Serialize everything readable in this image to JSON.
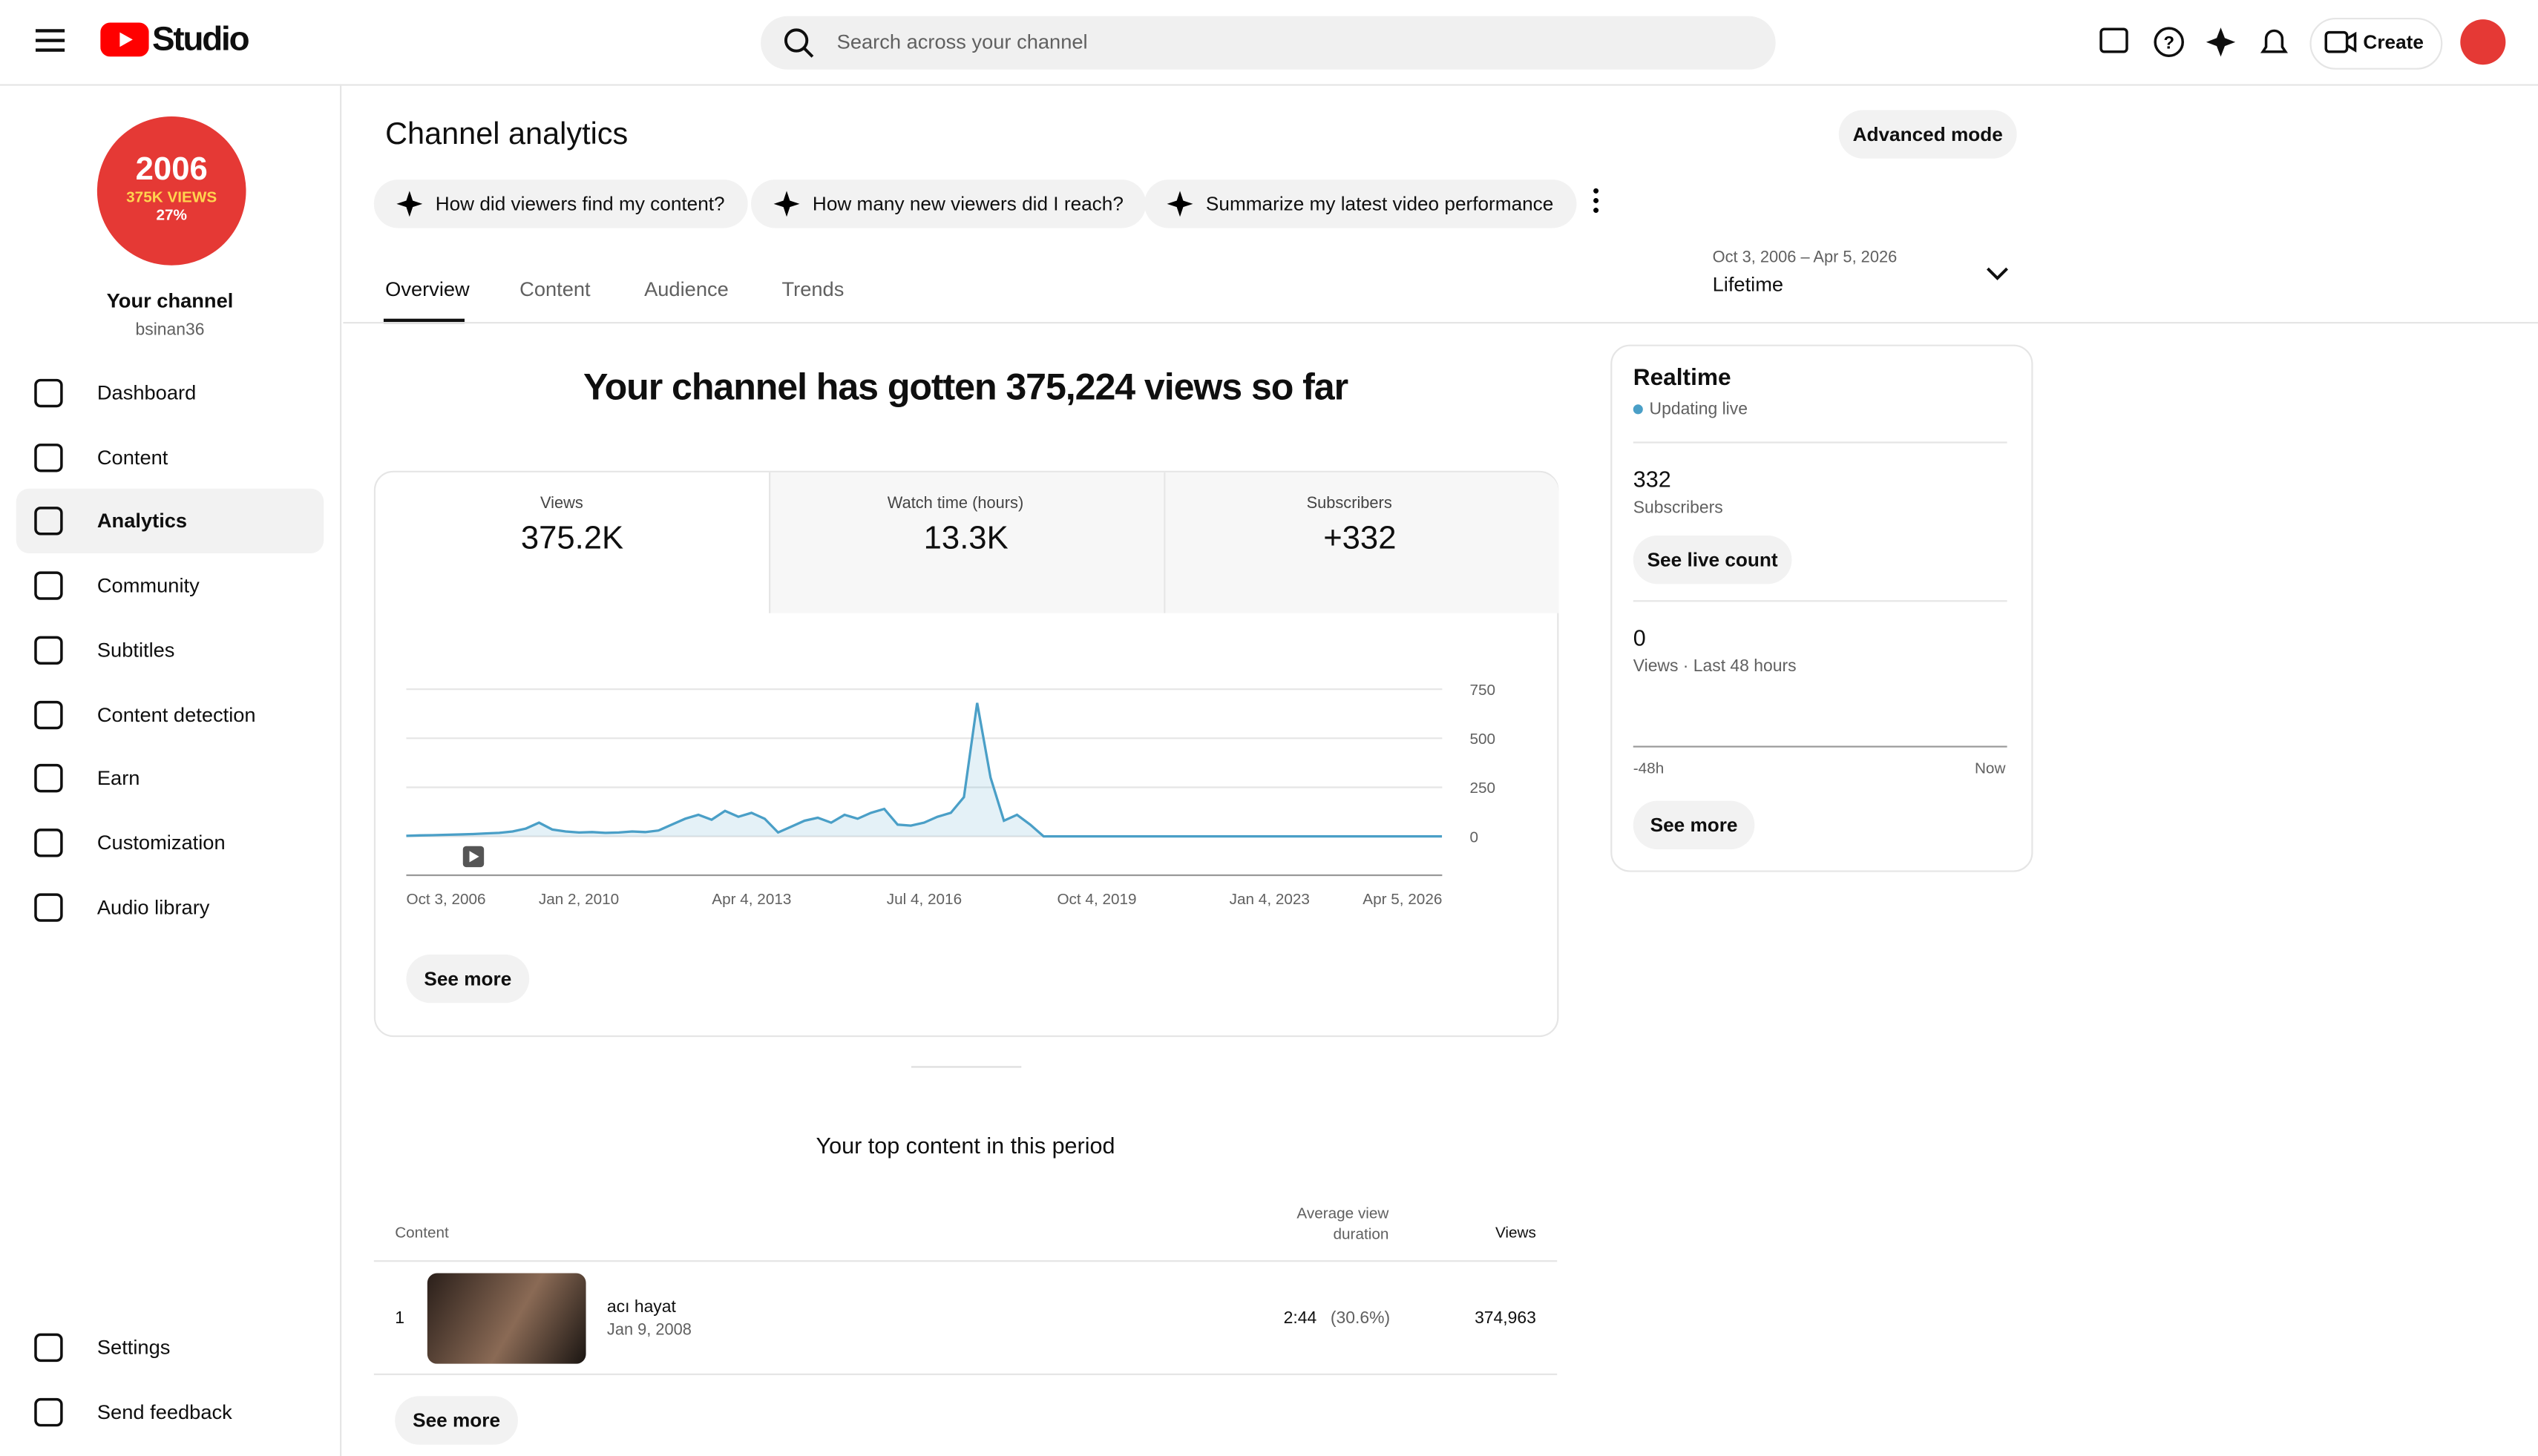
{
  "header": {
    "logo": "Studio",
    "search_placeholder": "Search across your channel",
    "create": "Create"
  },
  "sidebar": {
    "channel_name": "Your channel",
    "handle": "bsinan36",
    "avatar": {
      "year": "2006",
      "views": "375K VIEWS",
      "percent": "27%"
    },
    "nav": [
      "Dashboard",
      "Content",
      "Analytics",
      "Community",
      "Subtitles",
      "Content detection",
      "Earn",
      "Customization",
      "Audio library"
    ],
    "footer": [
      "Settings",
      "Send feedback"
    ]
  },
  "page": {
    "title": "Channel analytics",
    "advanced_mode": "Advanced mode",
    "chips": [
      "How did viewers find my content?",
      "How many new viewers did I reach?",
      "Summarize my latest video performance"
    ],
    "tabs": [
      "Overview",
      "Content",
      "Audience",
      "Trends"
    ],
    "date_range": {
      "range": "Oct 3, 2006 – Apr 5, 2026",
      "label": "Lifetime"
    },
    "headline": "Your channel has gotten 375,224 views so far",
    "metrics": [
      {
        "name": "Views",
        "value": "375.2K"
      },
      {
        "name": "Watch time (hours)",
        "value": "13.3K"
      },
      {
        "name": "Subscribers",
        "value": "+332"
      }
    ],
    "see_more": "See more"
  },
  "chart_data": {
    "type": "line",
    "color": "#4a9fc7",
    "grid": true,
    "x": [
      "2006-10-03",
      "2007-01-03",
      "2007-04-03",
      "2007-07-03",
      "2007-10-03",
      "2008-01-03",
      "2008-04-03",
      "2008-07-03",
      "2008-10-03",
      "2009-01-03",
      "2009-04-03",
      "2009-07-03",
      "2009-10-03",
      "2010-01-03",
      "2010-04-03",
      "2010-07-03",
      "2010-10-03",
      "2011-01-03",
      "2011-04-03",
      "2011-07-03",
      "2011-10-03",
      "2012-01-03",
      "2012-04-03",
      "2012-07-03",
      "2012-10-03",
      "2013-01-03",
      "2013-04-03",
      "2013-07-03",
      "2013-10-03",
      "2014-01-03",
      "2014-04-03",
      "2014-07-03",
      "2014-10-03",
      "2015-01-03",
      "2015-04-03",
      "2015-07-03",
      "2015-10-03",
      "2016-01-03",
      "2016-04-03",
      "2016-07-03",
      "2016-10-03",
      "2017-01-03",
      "2017-04-03",
      "2017-07-03",
      "2017-10-03",
      "2018-01-03",
      "2018-04-03",
      "2018-07-03",
      "2018-10-03",
      "2019-01-03",
      "2019-04-03",
      "2019-07-03",
      "2019-10-03",
      "2020-01-03",
      "2020-04-03",
      "2020-07-03",
      "2020-10-03",
      "2021-01-03",
      "2021-04-03",
      "2021-07-03",
      "2021-10-03",
      "2022-01-03",
      "2022-04-03",
      "2022-07-03",
      "2022-10-03",
      "2023-01-03",
      "2023-04-03",
      "2023-07-03",
      "2023-10-03",
      "2024-01-03",
      "2024-04-03",
      "2024-07-03",
      "2024-10-03",
      "2025-01-03",
      "2025-04-03",
      "2025-07-03",
      "2025-10-03",
      "2026-01-03",
      "2026-04-03"
    ],
    "values": [
      3,
      5,
      6,
      8,
      10,
      12,
      15,
      18,
      25,
      40,
      70,
      35,
      25,
      20,
      22,
      18,
      20,
      25,
      22,
      30,
      60,
      90,
      110,
      85,
      130,
      100,
      120,
      90,
      20,
      50,
      80,
      95,
      70,
      110,
      90,
      120,
      140,
      60,
      55,
      70,
      100,
      120,
      200,
      680,
      300,
      80,
      110,
      60,
      0,
      0,
      0,
      0,
      0,
      0,
      0,
      0,
      0,
      0,
      0,
      0,
      0,
      0,
      0,
      0,
      0,
      0,
      0,
      0,
      0,
      0,
      0,
      0,
      0,
      0,
      0,
      0,
      0,
      0,
      0
    ],
    "xlim": [
      "2006-10-03",
      "2026-04-05"
    ],
    "xticks": [
      {
        "value": "2006-10-03",
        "label": "Oct 3, 2006"
      },
      {
        "value": "2010-01-02",
        "label": "Jan 2, 2010"
      },
      {
        "value": "2013-04-04",
        "label": "Apr 4, 2013"
      },
      {
        "value": "2016-07-04",
        "label": "Jul 4, 2016"
      },
      {
        "value": "2019-10-04",
        "label": "Oct 4, 2019"
      },
      {
        "value": "2023-01-04",
        "label": "Jan 4, 2023"
      },
      {
        "value": "2026-04-05",
        "label": "Apr 5, 2026"
      }
    ],
    "ylim": [
      0,
      750
    ],
    "yticks": [
      0,
      250,
      500,
      750
    ]
  },
  "realtime": {
    "title": "Realtime",
    "status": "Updating live",
    "subscribers": "332",
    "subscribers_label": "Subscribers",
    "live_count": "See live count",
    "views": "0",
    "views_label": "Views · Last 48 hours",
    "axis_start": "-48h",
    "axis_end": "Now",
    "see_more": "See more"
  },
  "top_content": {
    "title": "Your top content in this period",
    "columns": [
      "Content",
      "Average view duration",
      "Views"
    ],
    "rows": [
      {
        "rank": "1",
        "title": "acı hayat",
        "date": "Jan 9, 2008",
        "duration": "2:44",
        "percent": "(30.6%)",
        "views": "374,963"
      }
    ],
    "see_more": "See more"
  }
}
